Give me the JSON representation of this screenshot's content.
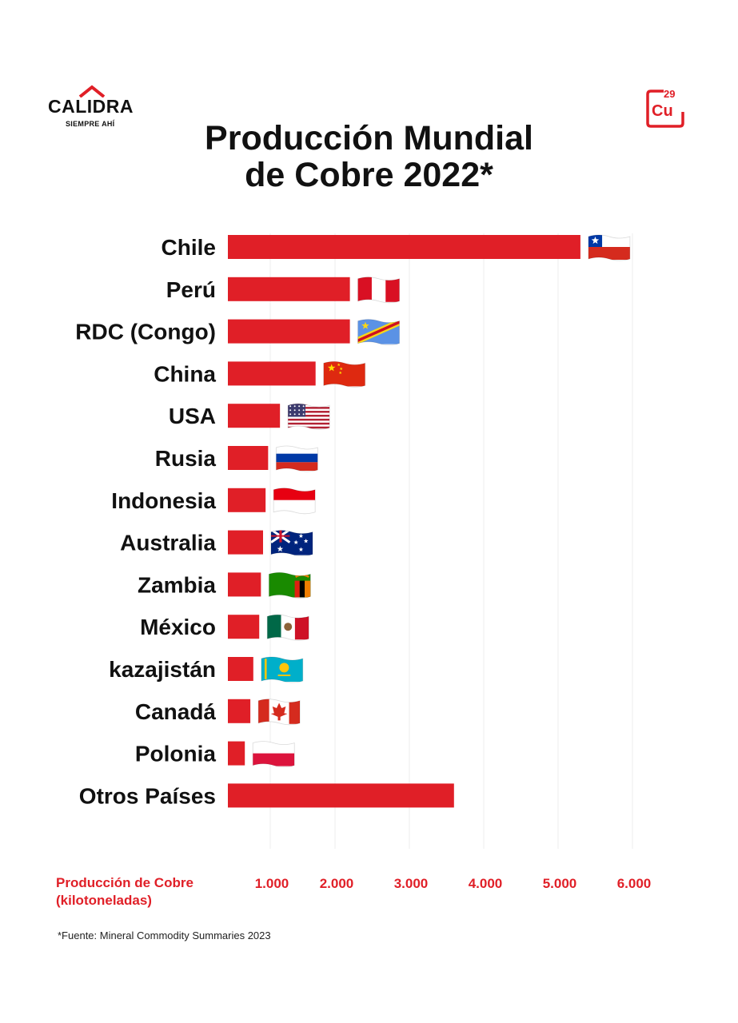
{
  "logo": {
    "name": "CALIDRA",
    "tagline": "SIEMPRE AHÍ"
  },
  "element_badge": {
    "number": "29",
    "symbol": "Cu"
  },
  "chart_data": {
    "type": "bar",
    "orientation": "horizontal",
    "title": "Producción Mundial de Cobre 2022*",
    "title_lines": [
      "Producción Mundial",
      "de Cobre 2022*"
    ],
    "xlabel_lines": [
      "Producción de Cobre",
      "(kilotoneladas)"
    ],
    "categories": [
      "Chile",
      "Perú",
      "RDC (Congo)",
      "China",
      "USA",
      "Rusia",
      "Indonesia",
      "Australia",
      "Zambia",
      "México",
      "kazajistán",
      "Canadá",
      "Polonia",
      "Otros Países"
    ],
    "values": [
      5300,
      2200,
      2200,
      1700,
      1150,
      950,
      890,
      830,
      780,
      740,
      600,
      530,
      400,
      3600
    ],
    "flags": [
      "chile-flag",
      "peru-flag",
      "drc-flag",
      "china-flag",
      "usa-flag",
      "russia-flag",
      "indonesia-flag",
      "australia-flag",
      "zambia-flag",
      "mexico-flag",
      "kazakhstan-flag",
      "canada-flag",
      "poland-flag",
      null
    ],
    "xticks": [
      1000,
      2000,
      3000,
      4000,
      5000,
      6000
    ],
    "xtick_labels": [
      "1.000",
      "2.000",
      "3.000",
      "4.000",
      "5.000",
      "6.000"
    ],
    "xlim": [
      0,
      6000
    ],
    "grid": "vertical",
    "bar_color": "#e01f27",
    "source": "*Fuente: Mineral Commodity Summaries 2023"
  }
}
